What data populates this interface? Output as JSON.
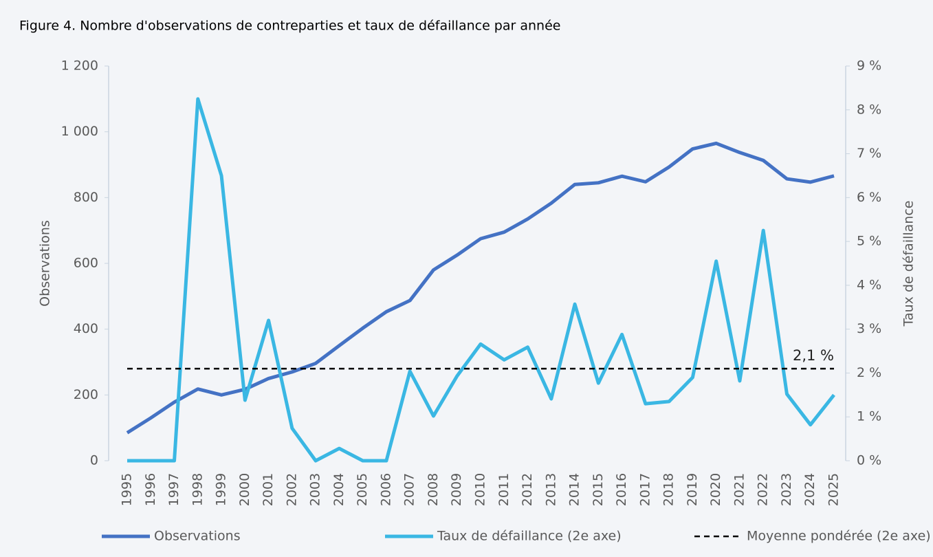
{
  "chart_data": {
    "type": "line",
    "title": "Figure 4. Nombre d'observations de contreparties et taux de défaillance par année",
    "ylabel": "Observations",
    "y2label": "Taux de défaillance",
    "categories": [
      "1995",
      "1996",
      "1997",
      "1998",
      "1999",
      "2000",
      "2001",
      "2002",
      "2003",
      "2004",
      "2005",
      "2006",
      "2007",
      "2008",
      "2009",
      "2010",
      "2011",
      "2012",
      "2013",
      "2014",
      "2015",
      "2016",
      "2017",
      "2018",
      "2019",
      "2020",
      "2021",
      "2022",
      "2023",
      "2024",
      "2025"
    ],
    "series": [
      {
        "name": "Observations",
        "color": "#4472c4",
        "values": [
          85,
          130,
          178,
          218,
          200,
          217,
          250,
          270,
          296,
          350,
          403,
          453,
          487,
          580,
          625,
          675,
          695,
          735,
          783,
          840,
          845,
          865,
          848,
          893,
          948,
          965,
          937,
          913,
          857,
          847,
          866
        ]
      },
      {
        "name": "Taux de défaillance (2e axe)",
        "color": "#3ab7e3",
        "axis": "y2",
        "values": [
          0,
          0,
          0,
          8.25,
          6.5,
          1.38,
          3.2,
          0.74,
          0,
          0.28,
          0,
          0,
          2.04,
          1.02,
          1.93,
          2.66,
          2.3,
          2.59,
          1.41,
          3.57,
          1.77,
          2.88,
          1.3,
          1.35,
          1.9,
          4.55,
          1.82,
          5.25,
          1.52,
          0.82,
          1.5
        ]
      }
    ],
    "mean": {
      "name": "Moyenne pondérée (2e axe)",
      "value": 2.1,
      "value_label": "2,1 %",
      "color": "#000000",
      "axis": "y2"
    },
    "ylim": [
      0,
      1200
    ],
    "yticks": [
      0,
      200,
      400,
      600,
      800,
      {
        "value": 1000,
        "label": "1 000"
      },
      {
        "value": 1200,
        "label": "1 200"
      }
    ],
    "y2lim": [
      0,
      9
    ],
    "y2ticks": [
      {
        "value": 0,
        "label": "0 %"
      },
      {
        "value": 1,
        "label": "1 %"
      },
      {
        "value": 2,
        "label": "2 %"
      },
      {
        "value": 3,
        "label": "3 %"
      },
      {
        "value": 4,
        "label": "4 %"
      },
      {
        "value": 5,
        "label": "5 %"
      },
      {
        "value": 6,
        "label": "6 %"
      },
      {
        "value": 7,
        "label": "7 %"
      },
      {
        "value": 8,
        "label": "8 %"
      },
      {
        "value": 9,
        "label": "9 %"
      }
    ],
    "legend": "bottom"
  }
}
